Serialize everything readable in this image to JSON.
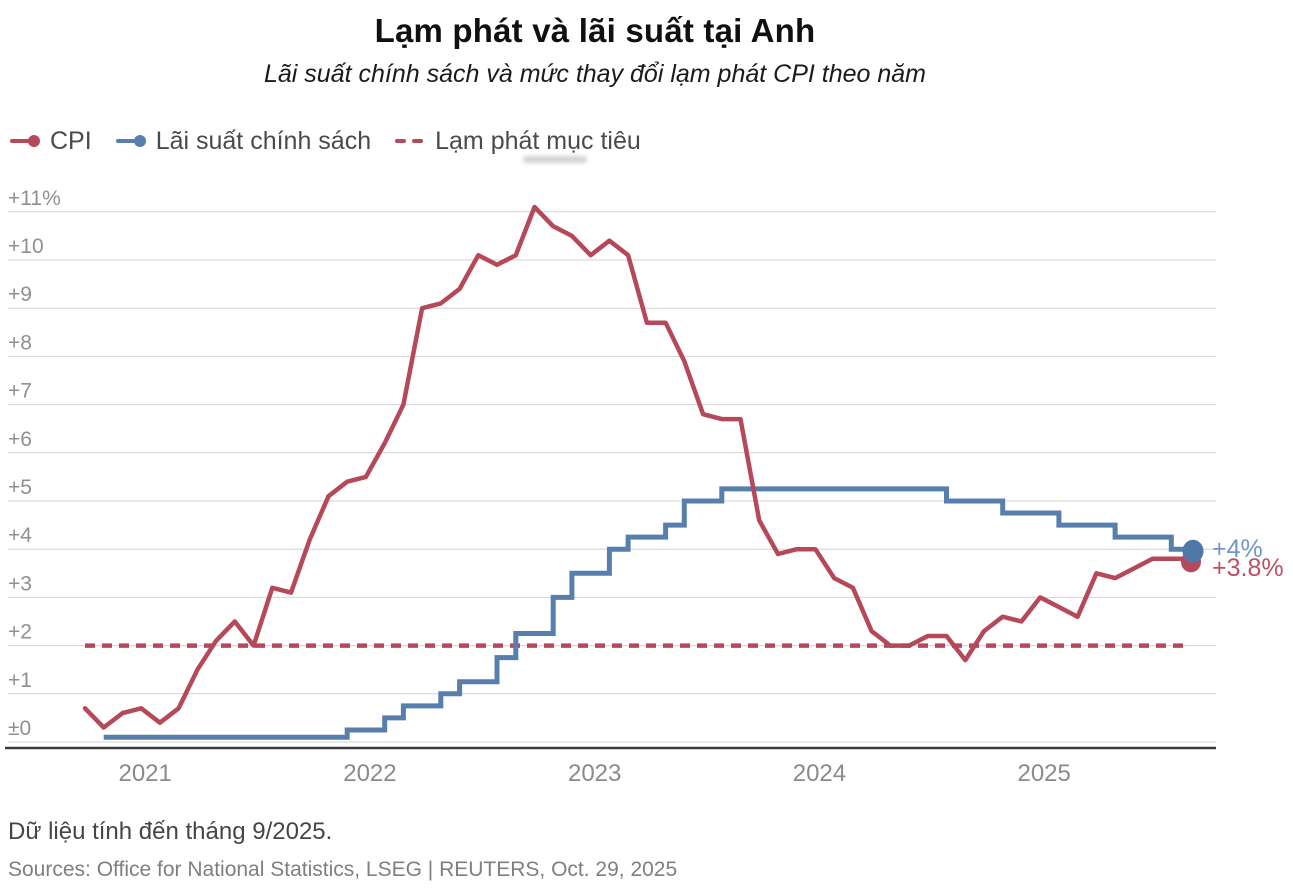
{
  "header": {
    "title": "Lạm phát và lãi suất tại Anh",
    "subtitle": "Lãi suất chính sách và mức thay đổi lạm phát CPI theo năm"
  },
  "legend": [
    {
      "label": "CPI",
      "color": "#b5495a",
      "marker": "line-dot"
    },
    {
      "label": "Lãi suất chính sách",
      "color": "#567fae",
      "marker": "line-dot"
    },
    {
      "label": "Lạm phát mục tiêu",
      "color": "#b5495a",
      "marker": "dashed"
    }
  ],
  "chart_data": {
    "type": "line",
    "x_start_month": "2020-10",
    "x_end_month": "2025-09",
    "x_tick_labels": [
      "2021",
      "2022",
      "2023",
      "2024",
      "2025"
    ],
    "y_tick_labels": [
      "±0",
      "+1",
      "+2",
      "+3",
      "+4",
      "+5",
      "+6",
      "+7",
      "+8",
      "+9",
      "+10",
      "+11%"
    ],
    "ylim": [
      0,
      11.5
    ],
    "grid": true,
    "target_line": {
      "value": 2,
      "style": "dashed",
      "color": "#b5495a"
    },
    "series": [
      {
        "name": "CPI",
        "color": "#b5495a",
        "interpolation": "linear",
        "start_offset_months": 0,
        "end_label": "+3.8%",
        "end_label_color": "#bf5063",
        "dot_color": "#b5495a",
        "values": [
          0.7,
          0.3,
          0.6,
          0.7,
          0.4,
          0.7,
          1.5,
          2.1,
          2.5,
          2.0,
          3.2,
          3.1,
          4.2,
          5.1,
          5.4,
          5.5,
          6.2,
          7.0,
          9.0,
          9.1,
          9.4,
          10.1,
          9.9,
          10.1,
          11.1,
          10.7,
          10.5,
          10.1,
          10.4,
          10.1,
          8.7,
          8.7,
          7.9,
          6.8,
          6.7,
          6.7,
          4.6,
          3.9,
          4.0,
          4.0,
          3.4,
          3.2,
          2.3,
          2.0,
          2.0,
          2.2,
          2.2,
          1.7,
          2.3,
          2.6,
          2.5,
          3.0,
          2.8,
          2.6,
          3.5,
          3.4,
          3.6,
          3.8,
          3.8,
          3.8
        ]
      },
      {
        "name": "Lãi suất chính sách",
        "color": "#567fae",
        "interpolation": "step-after",
        "start_offset_months": 1,
        "end_label": "+4%",
        "end_label_color": "#7296c4",
        "dot_color": "#4f77a8",
        "values": [
          0.1,
          0.1,
          0.1,
          0.1,
          0.1,
          0.1,
          0.1,
          0.1,
          0.1,
          0.1,
          0.1,
          0.1,
          0.1,
          0.25,
          0.25,
          0.5,
          0.75,
          0.75,
          1.0,
          1.25,
          1.25,
          1.75,
          2.25,
          2.25,
          3.0,
          3.5,
          3.5,
          4.0,
          4.25,
          4.25,
          4.5,
          5.0,
          5.0,
          5.25,
          5.25,
          5.25,
          5.25,
          5.25,
          5.25,
          5.25,
          5.25,
          5.25,
          5.25,
          5.25,
          5.25,
          5.0,
          5.0,
          5.0,
          4.75,
          4.75,
          4.75,
          4.5,
          4.5,
          4.5,
          4.25,
          4.25,
          4.25,
          4.0,
          4.0
        ]
      }
    ]
  },
  "footer": {
    "note": "Dữ liệu tính đến tháng 9/2025.",
    "source": "Sources: Office for National Statistics, LSEG | REUTERS, Oct. 29, 2025"
  },
  "colors": {
    "grid": "#d2d2d2",
    "axis": "#3b3b3b",
    "tick_text": "#909090",
    "year_text": "#8a8a8a"
  }
}
